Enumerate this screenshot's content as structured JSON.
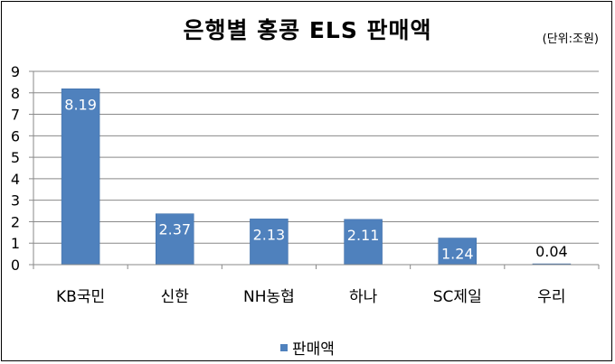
{
  "chart_data": {
    "type": "bar",
    "title": "은행별 홍콩 ELS 판매액",
    "unit_note": "(단위:조원)",
    "categories": [
      "KB국민",
      "신한",
      "NH농협",
      "하나",
      "SC제일",
      "우리"
    ],
    "series": [
      {
        "name": "판매액",
        "values": [
          8.19,
          2.37,
          2.13,
          2.11,
          1.24,
          0.04
        ]
      }
    ],
    "data_labels": [
      "8.19",
      "2.37",
      "2.13",
      "2.11",
      "1.24",
      "0.04"
    ],
    "y_ticks": [
      "0",
      "1",
      "2",
      "3",
      "4",
      "5",
      "6",
      "7",
      "8",
      "9"
    ],
    "ylim": [
      0,
      9
    ],
    "grid": true,
    "legend_position": "bottom",
    "bar_color": "#4f81bd"
  }
}
